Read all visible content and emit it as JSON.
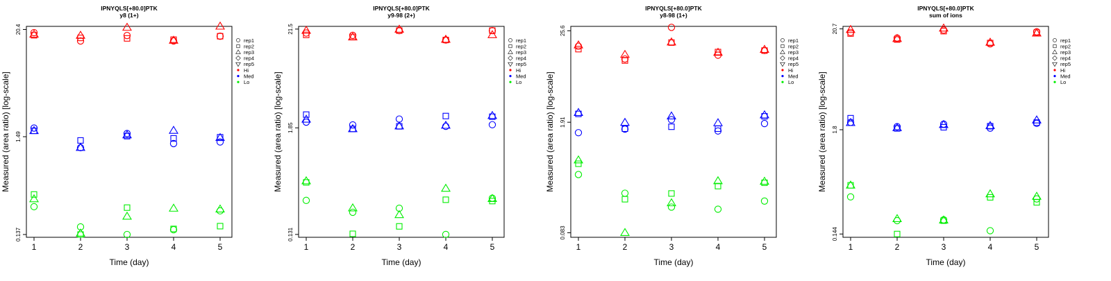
{
  "colors": {
    "Hi": "#ff0000",
    "Med": "#0000ff",
    "Lo": "#00ee00",
    "axis": "#000000"
  },
  "legend": {
    "items": [
      {
        "label": "rep1",
        "shape": "circle"
      },
      {
        "label": "rep2",
        "shape": "square"
      },
      {
        "label": "rep3",
        "shape": "triangle"
      },
      {
        "label": "rep4",
        "shape": "diamond"
      },
      {
        "label": "rep5",
        "shape": "triangle-down"
      },
      {
        "label": "Hi",
        "shape": "dot",
        "color": "Hi"
      },
      {
        "label": "Med",
        "shape": "dot",
        "color": "Med"
      },
      {
        "label": "Lo",
        "shape": "dot",
        "color": "Lo"
      }
    ]
  },
  "chart_data": [
    {
      "type": "scatter",
      "title": "IPNYQLS[+80.0]PTK",
      "subtitle": "y8 (1+)",
      "xlabel": "Time (day)",
      "ylabel": "Measured (area ratio) [log-scale]",
      "y_scale": "log",
      "ylim": [
        0.128,
        22.0
      ],
      "y_ticks": [
        {
          "value": 0.137,
          "label": "0.137"
        },
        {
          "value": 1.49,
          "label": "1.49"
        },
        {
          "value": 20.4,
          "label": "20.4"
        }
      ],
      "x_ticks": [
        1,
        2,
        3,
        4,
        5
      ],
      "series": [
        {
          "level": "Hi",
          "rep": "rep1",
          "x": [
            1,
            2,
            3,
            4,
            5
          ],
          "y": [
            18.9,
            15.4,
            17.6,
            15.4,
            17.3
          ]
        },
        {
          "level": "Hi",
          "rep": "rep2",
          "x": [
            1,
            2,
            3,
            4,
            5
          ],
          "y": [
            17.7,
            16.6,
            16.4,
            15.9,
            17.3
          ]
        },
        {
          "level": "Hi",
          "rep": "rep3",
          "x": [
            1,
            2,
            3,
            4,
            5
          ],
          "y": [
            18.1,
            17.6,
            21.4,
            15.6,
            22.0
          ]
        },
        {
          "level": "Med",
          "rep": "rep1",
          "x": [
            1,
            2,
            3,
            4,
            5
          ],
          "y": [
            1.84,
            1.14,
            1.61,
            1.26,
            1.31
          ]
        },
        {
          "level": "Med",
          "rep": "rep2",
          "x": [
            1,
            2,
            3,
            4,
            5
          ],
          "y": [
            1.72,
            1.36,
            1.51,
            1.43,
            1.47
          ]
        },
        {
          "level": "Med",
          "rep": "rep3",
          "x": [
            1,
            2,
            3,
            4,
            5
          ],
          "y": [
            1.72,
            1.14,
            1.55,
            1.73,
            1.45
          ]
        },
        {
          "level": "Lo",
          "rep": "rep1",
          "x": [
            1,
            2,
            3,
            4,
            5
          ],
          "y": [
            0.27,
            0.165,
            0.137,
            0.154,
            0.244
          ]
        },
        {
          "level": "Lo",
          "rep": "rep2",
          "x": [
            1,
            2,
            3,
            4,
            5
          ],
          "y": [
            0.364,
            0.137,
            0.264,
            0.157,
            0.168
          ]
        },
        {
          "level": "Lo",
          "rep": "rep3",
          "x": [
            1,
            2,
            3,
            4,
            5
          ],
          "y": [
            0.326,
            0.141,
            0.213,
            0.259,
            0.254
          ]
        }
      ]
    },
    {
      "type": "scatter",
      "title": "IPNYQLS[+80.0]PTK",
      "subtitle": "y9-98 (2+)",
      "xlabel": "Time (day)",
      "ylabel": "Measured (area ratio) [log-scale]",
      "y_scale": "log",
      "ylim": [
        0.122,
        23.0
      ],
      "y_ticks": [
        {
          "value": 0.131,
          "label": "0.131"
        },
        {
          "value": 1.85,
          "label": "1.85"
        },
        {
          "value": 21.5,
          "label": "21.5"
        }
      ],
      "x_ticks": [
        1,
        2,
        3,
        4,
        5
      ],
      "series": [
        {
          "level": "Hi",
          "rep": "rep1",
          "x": [
            1,
            2,
            3,
            4,
            5
          ],
          "y": [
            19.5,
            18.4,
            20.7,
            16.4,
            20.7
          ]
        },
        {
          "level": "Hi",
          "rep": "rep2",
          "x": [
            1,
            2,
            3,
            4,
            5
          ],
          "y": [
            18.6,
            17.7,
            20.7,
            16.4,
            20.7
          ]
        },
        {
          "level": "Hi",
          "rep": "rep3",
          "x": [
            1,
            2,
            3,
            4,
            5
          ],
          "y": [
            20.7,
            17.6,
            21.3,
            16.6,
            18.6
          ]
        },
        {
          "level": "Med",
          "rep": "rep1",
          "x": [
            1,
            2,
            3,
            4,
            5
          ],
          "y": [
            2.13,
            1.99,
            2.3,
            1.92,
            2.0
          ]
        },
        {
          "level": "Med",
          "rep": "rep2",
          "x": [
            1,
            2,
            3,
            4,
            5
          ],
          "y": [
            2.57,
            1.8,
            1.92,
            2.48,
            2.44
          ]
        },
        {
          "level": "Med",
          "rep": "rep3",
          "x": [
            1,
            2,
            3,
            4,
            5
          ],
          "y": [
            2.28,
            1.8,
            1.93,
            1.96,
            2.5
          ]
        },
        {
          "level": "Lo",
          "rep": "rep1",
          "x": [
            1,
            2,
            3,
            4,
            5
          ],
          "y": [
            0.305,
            0.227,
            0.251,
            0.131,
            0.322
          ]
        },
        {
          "level": "Lo",
          "rep": "rep2",
          "x": [
            1,
            2,
            3,
            4,
            5
          ],
          "y": [
            0.477,
            0.133,
            0.16,
            0.31,
            0.3
          ]
        },
        {
          "level": "Lo",
          "rep": "rep3",
          "x": [
            1,
            2,
            3,
            4,
            5
          ],
          "y": [
            0.493,
            0.252,
            0.213,
            0.41,
            0.318
          ]
        }
      ]
    },
    {
      "type": "scatter",
      "title": "IPNYQLS[+80.0]PTK",
      "subtitle": "y8-98 (1+)",
      "xlabel": "Time (day)",
      "ylabel": "Measured (area ratio) [log-scale]",
      "y_scale": "log",
      "ylim": [
        0.073,
        29.0
      ],
      "y_ticks": [
        {
          "value": 0.083,
          "label": "0.083"
        },
        {
          "value": 1.91,
          "label": "1.91"
        },
        {
          "value": 25.6,
          "label": "25.6"
        }
      ],
      "x_ticks": [
        1,
        2,
        3,
        4,
        5
      ],
      "series": [
        {
          "level": "Hi",
          "rep": "rep1",
          "x": [
            1,
            2,
            3,
            4,
            5
          ],
          "y": [
            16.5,
            11.5,
            28.2,
            12.8,
            14.6
          ]
        },
        {
          "level": "Hi",
          "rep": "rep2",
          "x": [
            1,
            2,
            3,
            4,
            5
          ],
          "y": [
            15.2,
            11.0,
            18.3,
            14.0,
            14.6
          ]
        },
        {
          "level": "Hi",
          "rep": "rep3",
          "x": [
            1,
            2,
            3,
            4,
            5
          ],
          "y": [
            17.0,
            13.0,
            18.5,
            13.8,
            15.0
          ]
        },
        {
          "level": "Med",
          "rep": "rep1",
          "x": [
            1,
            2,
            3,
            4,
            5
          ],
          "y": [
            1.42,
            1.57,
            2.05,
            1.49,
            1.84
          ]
        },
        {
          "level": "Med",
          "rep": "rep2",
          "x": [
            1,
            2,
            3,
            4,
            5
          ],
          "y": [
            2.42,
            1.59,
            1.68,
            1.59,
            2.26
          ]
        },
        {
          "level": "Med",
          "rep": "rep3",
          "x": [
            1,
            2,
            3,
            4,
            5
          ],
          "y": [
            2.5,
            1.89,
            2.27,
            1.87,
            2.34
          ]
        },
        {
          "level": "Lo",
          "rep": "rep1",
          "x": [
            1,
            2,
            3,
            4,
            5
          ],
          "y": [
            0.433,
            0.255,
            0.172,
            0.162,
            0.204
          ]
        },
        {
          "level": "Lo",
          "rep": "rep2",
          "x": [
            1,
            2,
            3,
            4,
            5
          ],
          "y": [
            0.588,
            0.215,
            0.253,
            0.312,
            0.343
          ]
        },
        {
          "level": "Lo",
          "rep": "rep3",
          "x": [
            1,
            2,
            3,
            4,
            5
          ],
          "y": [
            0.651,
            0.083,
            0.193,
            0.361,
            0.356
          ]
        }
      ]
    },
    {
      "type": "scatter",
      "title": "IPNYQLS[+80.0]PTK",
      "subtitle": "sum of ions",
      "xlabel": "Time (day)",
      "ylabel": "Measured (area ratio) [log-scale]",
      "y_scale": "log",
      "ylim": [
        0.133,
        22.0
      ],
      "y_ticks": [
        {
          "value": 0.144,
          "label": "0.144"
        },
        {
          "value": 1.8,
          "label": "1.8"
        },
        {
          "value": 20.7,
          "label": "20.7"
        }
      ],
      "x_ticks": [
        1,
        2,
        3,
        4,
        5
      ],
      "series": [
        {
          "level": "Hi",
          "rep": "rep1",
          "x": [
            1,
            2,
            3,
            4,
            5
          ],
          "y": [
            19.0,
            16.6,
            20.1,
            14.4,
            19.3
          ]
        },
        {
          "level": "Hi",
          "rep": "rep2",
          "x": [
            1,
            2,
            3,
            4,
            5
          ],
          "y": [
            18.5,
            16.0,
            19.6,
            14.7,
            18.9
          ]
        },
        {
          "level": "Hi",
          "rep": "rep3",
          "x": [
            1,
            2,
            3,
            4,
            5
          ],
          "y": [
            20.3,
            16.3,
            21.0,
            14.9,
            18.6
          ]
        },
        {
          "level": "Med",
          "rep": "rep1",
          "x": [
            1,
            2,
            3,
            4,
            5
          ],
          "y": [
            2.15,
            1.94,
            2.06,
            1.87,
            2.1
          ]
        },
        {
          "level": "Med",
          "rep": "rep2",
          "x": [
            1,
            2,
            3,
            4,
            5
          ],
          "y": [
            2.38,
            1.86,
            1.91,
            1.96,
            2.14
          ]
        },
        {
          "level": "Med",
          "rep": "rep3",
          "x": [
            1,
            2,
            3,
            4,
            5
          ],
          "y": [
            2.13,
            1.88,
            2.03,
            1.98,
            2.27
          ]
        },
        {
          "level": "Lo",
          "rep": "rep1",
          "x": [
            1,
            2,
            3,
            4,
            5
          ],
          "y": [
            0.354,
            0.199,
            0.203,
            0.156,
            0.337
          ]
        },
        {
          "level": "Lo",
          "rep": "rep2",
          "x": [
            1,
            2,
            3,
            4,
            5
          ],
          "y": [
            0.468,
            0.144,
            0.199,
            0.35,
            0.31
          ]
        },
        {
          "level": "Lo",
          "rep": "rep3",
          "x": [
            1,
            2,
            3,
            4,
            5
          ],
          "y": [
            0.468,
            0.208,
            0.201,
            0.379,
            0.357
          ]
        }
      ]
    }
  ]
}
